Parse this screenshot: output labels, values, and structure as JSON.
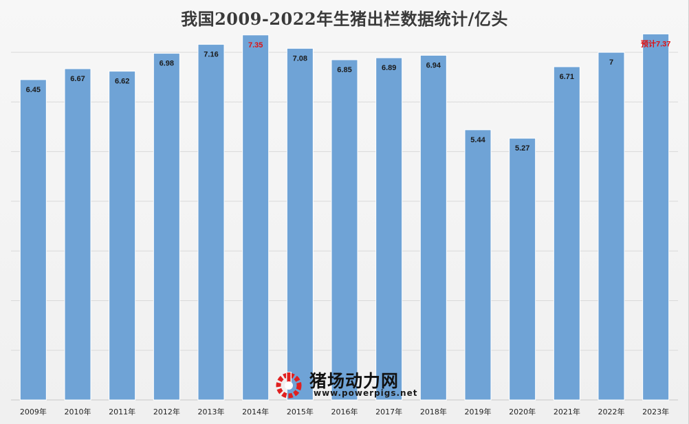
{
  "chart_data": {
    "type": "bar",
    "title": "我国2009-2022年生猪出栏数据统计/亿头",
    "categories": [
      "2009年",
      "2010年",
      "2011年",
      "2012年",
      "2013年",
      "2014年",
      "2015年",
      "2016年",
      "2017年",
      "2018年",
      "2019年",
      "2020年",
      "2021年",
      "2022年",
      "2023年"
    ],
    "values": [
      6.45,
      6.67,
      6.62,
      6.98,
      7.16,
      7.35,
      7.08,
      6.85,
      6.89,
      6.94,
      5.44,
      5.27,
      6.71,
      7,
      7.37
    ],
    "data_labels": [
      "6.45",
      "6.67",
      "6.62",
      "6.98",
      "7.16",
      "7.35",
      "7.08",
      "6.85",
      "6.89",
      "6.94",
      "5.44",
      "5.27",
      "6.71",
      "7",
      "预计7.37"
    ],
    "highlighted_labels": [
      5,
      14
    ],
    "ylim": [
      0,
      7.5
    ],
    "grid": true,
    "colors": {
      "bar": "#6fa3d6",
      "bar_edge": "#ffffff",
      "label_default": "#1a1a1a",
      "label_highlight": "#e01010",
      "gridline": "#d9d9d9"
    }
  },
  "watermark": {
    "name": "猪场动力网",
    "url": "www.powerpigs.net",
    "logo_color": "#e02020"
  }
}
